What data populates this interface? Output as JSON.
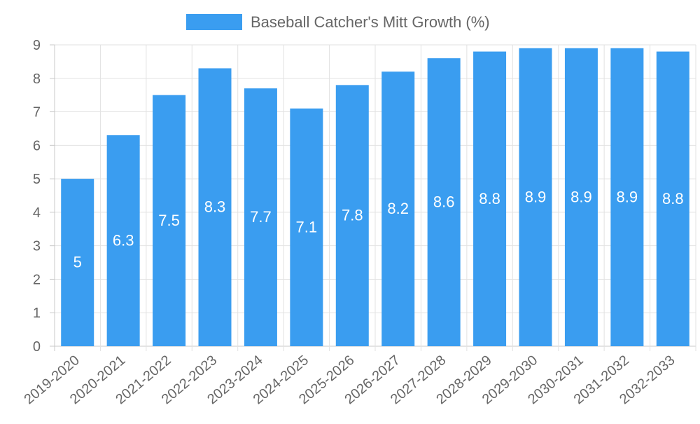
{
  "chart_data": {
    "type": "bar",
    "title": "",
    "xlabel": "",
    "ylabel": "",
    "categories": [
      "2019-2020",
      "2020-2021",
      "2021-2022",
      "2022-2023",
      "2023-2024",
      "2024-2025",
      "2025-2026",
      "2026-2027",
      "2027-2028",
      "2028-2029",
      "2029-2030",
      "2030-2031",
      "2031-2032",
      "2032-2033"
    ],
    "series": [
      {
        "name": "Baseball Catcher's Mitt Growth (%)",
        "values": [
          5,
          6.3,
          7.5,
          8.3,
          7.7,
          7.1,
          7.8,
          8.2,
          8.6,
          8.8,
          8.9,
          8.9,
          8.9,
          8.8
        ],
        "color": "#3a9df0"
      }
    ],
    "data_labels": [
      "5",
      "6.3",
      "7.5",
      "8.3",
      "7.7",
      "7.1",
      "7.8",
      "8.2",
      "8.6",
      "8.8",
      "8.9",
      "8.9",
      "8.9",
      "8.8"
    ],
    "ylim": [
      0,
      9
    ],
    "yticks": [
      "0",
      "1",
      "2",
      "3",
      "4",
      "5",
      "6",
      "7",
      "8",
      "9"
    ],
    "grid": true,
    "legend_position": "top-center"
  }
}
